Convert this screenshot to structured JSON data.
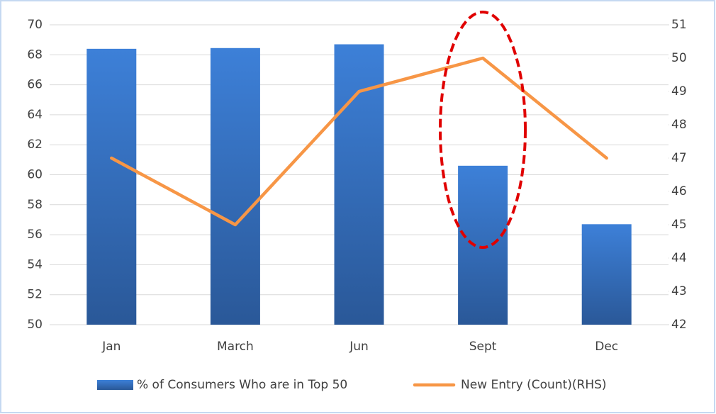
{
  "chart_data": {
    "type": "bar",
    "categories": [
      "Jan",
      "March",
      "Jun",
      "Sept",
      "Dec"
    ],
    "series": [
      {
        "name": "% of Consumers Who are in Top 50",
        "type": "bar",
        "color": "#3a7bd5",
        "values": [
          68.4,
          68.45,
          68.7,
          60.6,
          56.7
        ]
      },
      {
        "name": "New Entry (Count)(RHS)",
        "type": "line",
        "axis": "y2",
        "color": "#f79646",
        "values": [
          47,
          45,
          49,
          50,
          47
        ]
      }
    ],
    "ylim": [
      50,
      70
    ],
    "yticks": [
      50,
      52,
      54,
      56,
      58,
      60,
      62,
      64,
      66,
      68,
      70
    ],
    "y2lim": [
      42,
      51
    ],
    "y2ticks": [
      42,
      43,
      44,
      45,
      46,
      47,
      48,
      49,
      50,
      51
    ],
    "grid": true,
    "legend": "bottom"
  }
}
